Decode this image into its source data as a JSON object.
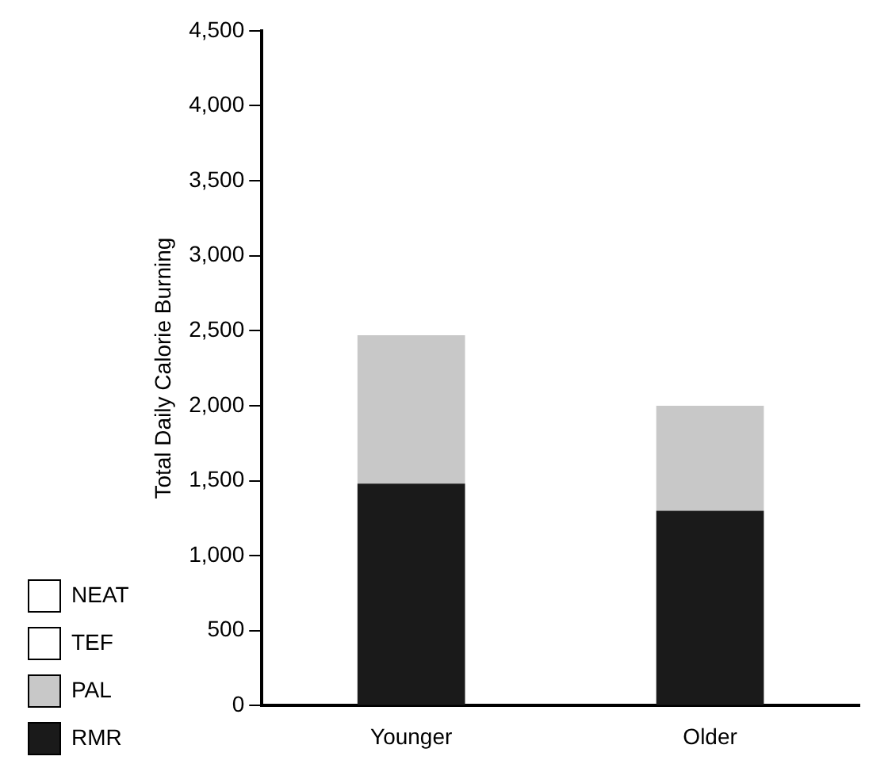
{
  "chart_data": {
    "type": "bar",
    "stacked": true,
    "ylabel": "Total Daily Calorie Burning",
    "categories": [
      "Younger",
      "Older"
    ],
    "series": [
      {
        "name": "RMR",
        "color": "#1a1a1a",
        "values": [
          1480,
          1300
        ]
      },
      {
        "name": "PAL",
        "color": "#c8c8c8",
        "values": [
          990,
          700
        ]
      },
      {
        "name": "TEF",
        "color": "#ffffff",
        "values": [
          0,
          0
        ]
      },
      {
        "name": "NEAT",
        "color": "#ffffff",
        "values": [
          0,
          0
        ]
      }
    ],
    "ylim": [
      0,
      4500
    ],
    "yticks": [
      {
        "value": 0,
        "label": "0"
      },
      {
        "value": 500,
        "label": "500"
      },
      {
        "value": 1000,
        "label": "1,000"
      },
      {
        "value": 1500,
        "label": "1,500"
      },
      {
        "value": 2000,
        "label": "2,000"
      },
      {
        "value": 2500,
        "label": "2,500"
      },
      {
        "value": 3000,
        "label": "3,000"
      },
      {
        "value": 3500,
        "label": "3,500"
      },
      {
        "value": 4000,
        "label": "4,000"
      },
      {
        "value": 4500,
        "label": "4,500"
      }
    ],
    "grid": false,
    "legend": "bottom left"
  }
}
